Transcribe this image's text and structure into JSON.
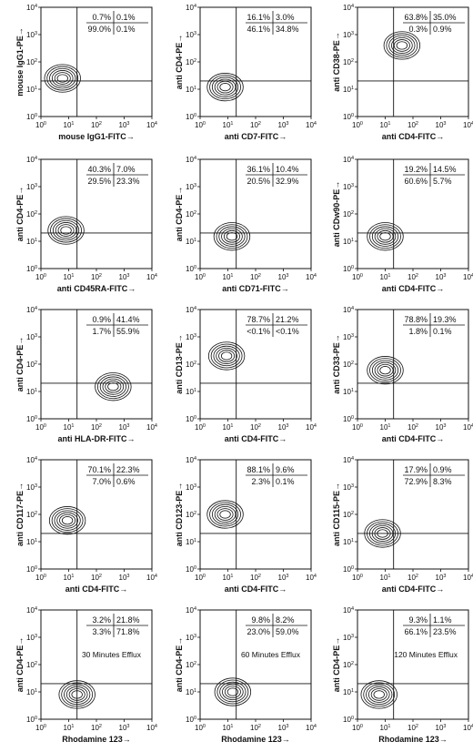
{
  "chart_data": [
    {
      "type": "contour",
      "xlabel": "mouse IgG1-FITC→",
      "ylabel": "mouse IgG1-PE→",
      "quadrants": {
        "ul": "0.7%",
        "ur": "0.1%",
        "ll": "99.0%",
        "lr": "0.1%"
      },
      "annotation": "",
      "contour_center": [
        6,
        25
      ]
    },
    {
      "type": "contour",
      "xlabel": "anti CD7-FITC→",
      "ylabel": "anti CD4-PE→",
      "quadrants": {
        "ul": "16.1%",
        "ur": "3.0%",
        "ll": "46.1%",
        "lr": "34.8%"
      },
      "annotation": "",
      "contour_center": [
        8,
        12
      ]
    },
    {
      "type": "contour",
      "xlabel": "anti CD4-FITC→",
      "ylabel": "anti CD38-PE→",
      "quadrants": {
        "ul": "63.8%",
        "ur": "35.0%",
        "ll": "0.3%",
        "lr": "0.9%"
      },
      "annotation": "",
      "contour_center": [
        40,
        400
      ]
    },
    {
      "type": "contour",
      "xlabel": "anti CD45RA-FITC→",
      "ylabel": "anti CD4-PE→",
      "quadrants": {
        "ul": "40.3%",
        "ur": "7.0%",
        "ll": "29.5%",
        "lr": "23.3%"
      },
      "annotation": "",
      "contour_center": [
        8,
        25
      ]
    },
    {
      "type": "contour",
      "xlabel": "anti CD71-FITC→",
      "ylabel": "anti CD4-PE→",
      "quadrants": {
        "ul": "36.1%",
        "ur": "10.4%",
        "ll": "20.5%",
        "lr": "32.9%"
      },
      "annotation": "",
      "contour_center": [
        14,
        15
      ]
    },
    {
      "type": "contour",
      "xlabel": "anti CD4-FITC→",
      "ylabel": "anti CDw90-PE→",
      "quadrants": {
        "ul": "19.2%",
        "ur": "14.5%",
        "ll": "60.6%",
        "lr": "5.7%"
      },
      "annotation": "",
      "contour_center": [
        10,
        15
      ]
    },
    {
      "type": "contour",
      "xlabel": "anti HLA-DR-FITC→",
      "ylabel": "anti CD4-PE→",
      "quadrants": {
        "ul": "0.9%",
        "ur": "41.4%",
        "ll": "1.7%",
        "lr": "55.9%"
      },
      "annotation": "",
      "contour_center": [
        400,
        15
      ]
    },
    {
      "type": "contour",
      "xlabel": "anti CD4-FITC→",
      "ylabel": "anti CD13-PE→",
      "quadrants": {
        "ul": "78.7%",
        "ur": "21.2%",
        "ll": "<0.1%",
        "lr": "<0.1%"
      },
      "annotation": "",
      "contour_center": [
        9,
        200
      ]
    },
    {
      "type": "contour",
      "xlabel": "anti CD4-FITC→",
      "ylabel": "anti CD33-PE→",
      "quadrants": {
        "ul": "78.8%",
        "ur": "19.3%",
        "ll": "1.8%",
        "lr": "0.1%"
      },
      "annotation": "",
      "contour_center": [
        10,
        60
      ]
    },
    {
      "type": "contour",
      "xlabel": "anti CD4-FITC→",
      "ylabel": "anti CD117-PE→",
      "quadrants": {
        "ul": "70.1%",
        "ur": "22.3%",
        "ll": "7.0%",
        "lr": "0.6%"
      },
      "annotation": "",
      "contour_center": [
        9,
        60
      ]
    },
    {
      "type": "contour",
      "xlabel": "anti CD4-FITC→",
      "ylabel": "anti CD123-PE→",
      "quadrants": {
        "ul": "88.1%",
        "ur": "9.6%",
        "ll": "2.3%",
        "lr": "0.1%"
      },
      "annotation": "",
      "contour_center": [
        8,
        100
      ]
    },
    {
      "type": "contour",
      "xlabel": "anti CD4-FITC→",
      "ylabel": "anti CD115-PE→",
      "quadrants": {
        "ul": "17.9%",
        "ur": "0.9%",
        "ll": "72.9%",
        "lr": "8.3%"
      },
      "annotation": "",
      "contour_center": [
        8,
        20
      ]
    },
    {
      "type": "contour",
      "xlabel": "Rhodamine 123→",
      "ylabel": "anti CD4-PE→",
      "quadrants": {
        "ul": "3.2%",
        "ur": "21.8%",
        "ll": "3.3%",
        "lr": "71.8%"
      },
      "annotation": "30 Minutes Efflux",
      "contour_center": [
        20,
        8
      ]
    },
    {
      "type": "contour",
      "xlabel": "Rhodamine 123→",
      "ylabel": "anti CD4-PE→",
      "quadrants": {
        "ul": "9.8%",
        "ur": "8.2%",
        "ll": "23.0%",
        "lr": "59.0%"
      },
      "annotation": "60 Minutes Efflux",
      "contour_center": [
        15,
        10
      ]
    },
    {
      "type": "contour",
      "xlabel": "Rhodamine 123→",
      "ylabel": "anti CD4-PE→",
      "quadrants": {
        "ul": "9.3%",
        "ur": "1.1%",
        "ll": "66.1%",
        "lr": "23.5%"
      },
      "annotation": "120 Minutes Efflux",
      "contour_center": [
        6,
        8
      ]
    }
  ],
  "axis": {
    "scale": "log",
    "range": [
      1,
      10000
    ],
    "tick_base": "10",
    "tick_exponents": [
      "0",
      "1",
      "2",
      "3",
      "4"
    ],
    "gate": {
      "x": 20,
      "y": 20
    }
  },
  "colors": {
    "ink": "#111111",
    "background": "#ffffff"
  }
}
